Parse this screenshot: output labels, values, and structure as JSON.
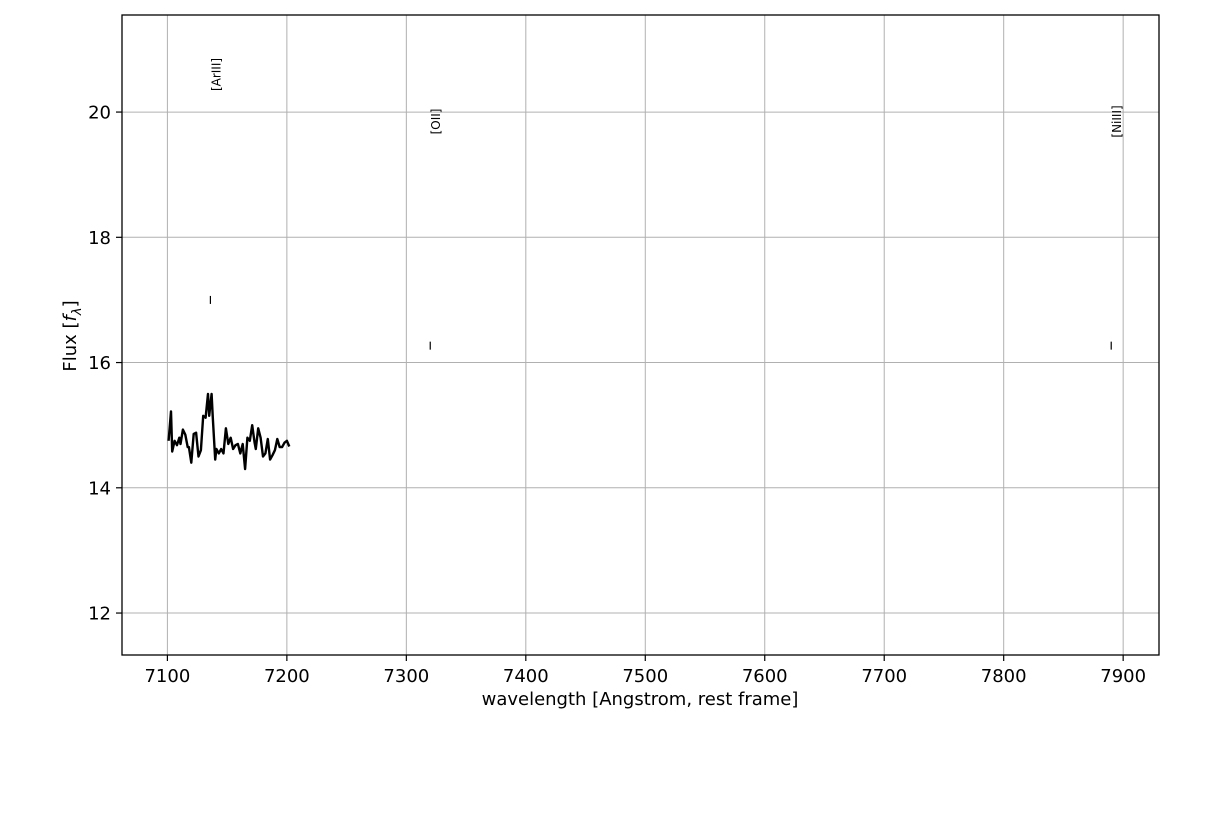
{
  "chart_data": {
    "type": "line",
    "title": "",
    "xlabel": "wavelength [Angstrom, rest frame]",
    "ylabel_prefix": "Flux [",
    "ylabel_symbol": "f",
    "ylabel_subscript": "λ",
    "ylabel_suffix": "]",
    "xlim": [
      7062,
      7930
    ],
    "ylim": [
      11.33,
      21.55
    ],
    "xticks": [
      7100,
      7200,
      7300,
      7400,
      7500,
      7600,
      7700,
      7800,
      7900
    ],
    "yticks": [
      12,
      14,
      16,
      18,
      20
    ],
    "xtick_labels": [
      "7100",
      "7200",
      "7300",
      "7400",
      "7500",
      "7600",
      "7700",
      "7800",
      "7900"
    ],
    "ytick_labels": [
      "12",
      "14",
      "16",
      "18",
      "20"
    ],
    "grid": true,
    "legend": "none",
    "colors": {
      "line": "#000000",
      "grid": "#b0b0b0",
      "axes": "#000000"
    },
    "series": [
      {
        "x": [
          7101,
          7103,
          7104,
          7106,
          7108,
          7110,
          7111,
          7113,
          7115,
          7117,
          7118,
          7120,
          7122,
          7124,
          7126,
          7128,
          7130,
          7132,
          7134,
          7135,
          7137,
          7138,
          7140,
          7141,
          7143,
          7145,
          7147,
          7149,
          7151,
          7153,
          7155,
          7157,
          7159,
          7161,
          7163,
          7165,
          7167,
          7169,
          7171,
          7173,
          7174,
          7176,
          7178,
          7180,
          7182,
          7184,
          7186,
          7188,
          7190,
          7192,
          7194,
          7196,
          7198,
          7200,
          7202
        ],
        "y": [
          14.75,
          15.22,
          14.58,
          14.75,
          14.68,
          14.8,
          14.7,
          14.93,
          14.85,
          14.65,
          14.65,
          14.4,
          14.86,
          14.88,
          14.5,
          14.6,
          15.15,
          15.12,
          15.5,
          15.15,
          15.5,
          15.12,
          14.45,
          14.62,
          14.55,
          14.62,
          14.55,
          14.95,
          14.7,
          14.8,
          14.62,
          14.68,
          14.7,
          14.55,
          14.7,
          14.3,
          14.8,
          14.75,
          15.0,
          14.72,
          14.62,
          14.95,
          14.8,
          14.5,
          14.55,
          14.78,
          14.45,
          14.52,
          14.6,
          14.78,
          14.65,
          14.65,
          14.72,
          14.75,
          14.66
        ]
      }
    ],
    "line_markers": [
      {
        "label": "[ArIII]",
        "x": 7136,
        "marker_y": 17.0,
        "label_y": 20.6
      },
      {
        "label": "[OII]",
        "x": 7320,
        "marker_y": 16.27,
        "label_y": 19.85
      },
      {
        "label": "[NiIII]",
        "x": 7890,
        "marker_y": 16.27,
        "label_y": 19.85
      }
    ]
  }
}
